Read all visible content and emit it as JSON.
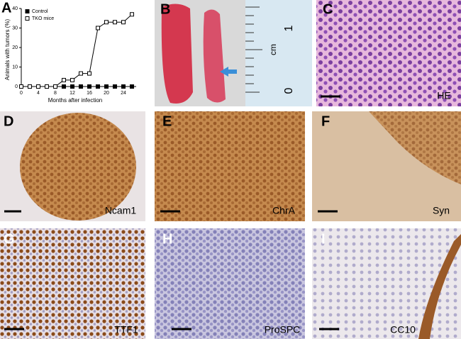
{
  "chart_data": {
    "type": "line",
    "ylabel": "Animals with tumors (%)",
    "xlabel": "Months after infection",
    "x": [
      0,
      2,
      4,
      6,
      8,
      10,
      12,
      14,
      16,
      18,
      20,
      22,
      24,
      26
    ],
    "series": [
      {
        "name": "Control",
        "color": "#000000",
        "filled": true,
        "values": [
          0,
          0,
          0,
          0,
          0,
          0,
          0,
          0,
          0,
          0,
          0,
          0,
          0,
          0
        ]
      },
      {
        "name": "TKO mice",
        "color": "#000000",
        "filled": false,
        "values": [
          0,
          0,
          0,
          0,
          0,
          3.3,
          3.3,
          6.7,
          6.7,
          30,
          33,
          33,
          33,
          37
        ]
      }
    ],
    "xlim": [
      0,
      27
    ],
    "xticks": [
      0,
      4,
      8,
      12,
      16,
      20,
      24
    ],
    "ylim": [
      0,
      40
    ],
    "yticks": [
      0,
      10,
      20,
      30,
      40
    ],
    "legend": "upper left"
  },
  "panels": [
    {
      "letter": "A"
    },
    {
      "letter": "B",
      "ruler_unit": "cm",
      "ruler_labels": [
        "1",
        "0"
      ]
    },
    {
      "letter": "C",
      "stain": "HE"
    },
    {
      "letter": "D",
      "stain": "Ncam1"
    },
    {
      "letter": "E",
      "stain": "ChrA"
    },
    {
      "letter": "F",
      "stain": "Syn"
    },
    {
      "letter": "G",
      "stain": "TTF1"
    },
    {
      "letter": "H",
      "stain": "ProSPC"
    },
    {
      "letter": "I",
      "stain": "CC10"
    }
  ]
}
